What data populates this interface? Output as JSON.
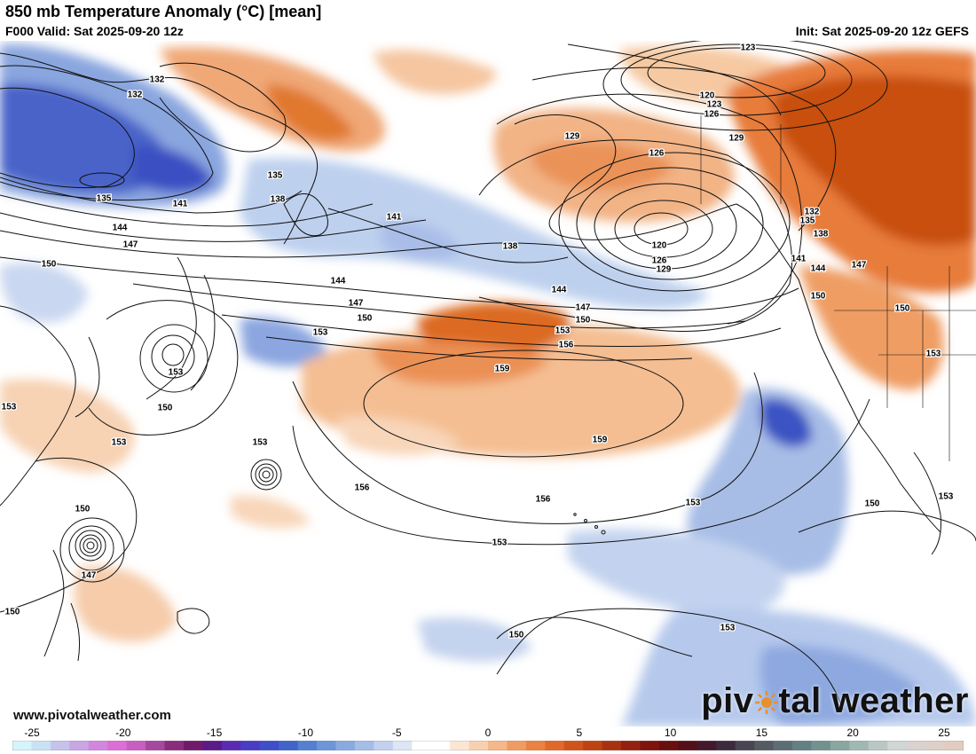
{
  "header": {
    "title": "850 mb Temperature Anomaly (°C) [mean]",
    "valid": "F000 Valid: Sat 2025-09-20 12z",
    "init": "Init: Sat 2025-09-20 12z GEFS"
  },
  "watermark": "www.pivotalweather.com",
  "logo": {
    "left": "piv",
    "right": "tal weather"
  },
  "contour_labels": [
    {
      "t": "123"
    },
    {
      "t": "120"
    },
    {
      "t": "123"
    },
    {
      "t": "126"
    },
    {
      "t": "129"
    },
    {
      "t": "129"
    },
    {
      "t": "126"
    },
    {
      "t": "132"
    },
    {
      "t": "132"
    },
    {
      "t": "135"
    },
    {
      "t": "135"
    },
    {
      "t": "138"
    },
    {
      "t": "141"
    },
    {
      "t": "141"
    },
    {
      "t": "144"
    },
    {
      "t": "147"
    },
    {
      "t": "150"
    },
    {
      "t": "138"
    },
    {
      "t": "120"
    },
    {
      "t": "126"
    },
    {
      "t": "129"
    },
    {
      "t": "132"
    },
    {
      "t": "135"
    },
    {
      "t": "138"
    },
    {
      "t": "141"
    },
    {
      "t": "144"
    },
    {
      "t": "147"
    },
    {
      "t": "150"
    },
    {
      "t": "150"
    },
    {
      "t": "144"
    },
    {
      "t": "147"
    },
    {
      "t": "150"
    },
    {
      "t": "153"
    },
    {
      "t": "144"
    },
    {
      "t": "147"
    },
    {
      "t": "150"
    },
    {
      "t": "153"
    },
    {
      "t": "156"
    },
    {
      "t": "153"
    },
    {
      "t": "159"
    },
    {
      "t": "159"
    },
    {
      "t": "153"
    },
    {
      "t": "153"
    },
    {
      "t": "153"
    },
    {
      "t": "156"
    },
    {
      "t": "156"
    },
    {
      "t": "153"
    },
    {
      "t": "153"
    },
    {
      "t": "150"
    },
    {
      "t": "150"
    },
    {
      "t": "147"
    },
    {
      "t": "150"
    },
    {
      "t": "150"
    },
    {
      "t": "150"
    },
    {
      "t": "153"
    },
    {
      "t": "153"
    },
    {
      "t": "153"
    }
  ],
  "colorbar": {
    "ticks": [
      "-25",
      "-20",
      "-15",
      "-10",
      "-5",
      "0",
      "5",
      "10",
      "15",
      "20",
      "25"
    ],
    "colors": [
      "#d6f4fb",
      "#c9e2f3",
      "#c5c3ea",
      "#c8a6e3",
      "#d187dd",
      "#db6fd6",
      "#c85fc0",
      "#a6489f",
      "#8a2d7c",
      "#6f1b6a",
      "#5b1a86",
      "#5a2bb0",
      "#4a3cc4",
      "#3f4fc8",
      "#4064c8",
      "#5580d0",
      "#6d96d8",
      "#8aaadf",
      "#a6bde6",
      "#c3d1ee",
      "#dce6f4",
      "#ffffff",
      "#ffffff",
      "#fbe6d4",
      "#f8d0b0",
      "#f4b88a",
      "#ef9c64",
      "#e98243",
      "#e0692a",
      "#cf541c",
      "#bd4314",
      "#a83210",
      "#92210f",
      "#7d140e",
      "#68100f",
      "#541019",
      "#421a2b",
      "#3e2a3e",
      "#4a4553",
      "#565a62",
      "#5d6e73",
      "#648082",
      "#72928f",
      "#89a6a0",
      "#a1b8b2",
      "#b9c8c4",
      "#cfd6d4",
      "#d9d2d0",
      "#ddd0c8",
      "#e0cdbf"
    ]
  },
  "colors": {
    "warm": "#cf541c",
    "cold": "#4a5fc8",
    "ocean": "#ffffff"
  }
}
